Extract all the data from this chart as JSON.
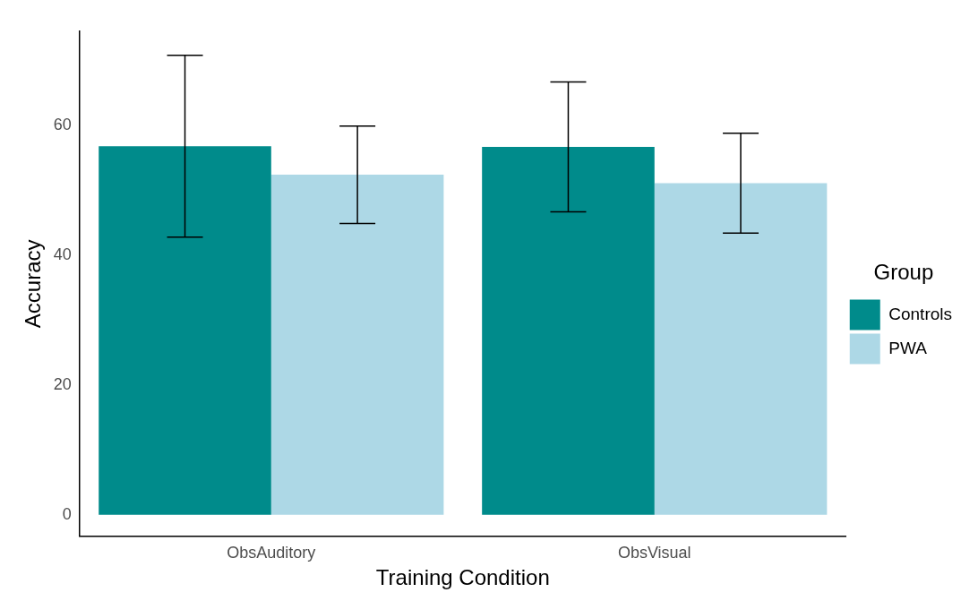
{
  "chart_data": {
    "type": "bar",
    "xlabel": "Training Condition",
    "ylabel": "Accuracy",
    "legend_title": "Group",
    "categories": [
      "ObsAuditory",
      "ObsVisual"
    ],
    "series": [
      {
        "name": "Controls",
        "color": "#008b8b",
        "values": [
          56.8,
          56.7
        ],
        "errors": [
          14,
          10
        ]
      },
      {
        "name": "PWA",
        "color": "#add8e6",
        "values": [
          52.4,
          51.1
        ],
        "errors": [
          7.5,
          7.7
        ]
      }
    ],
    "ylim": [
      -3.3,
      74.5
    ],
    "yticks": [
      0,
      20,
      40,
      60
    ],
    "grid": false,
    "legend": "right"
  }
}
